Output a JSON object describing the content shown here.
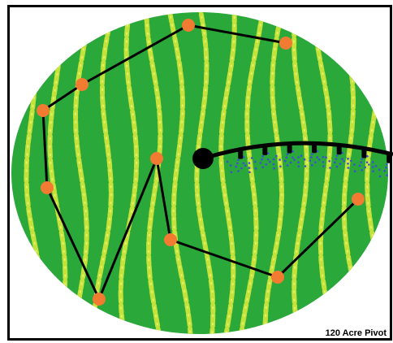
{
  "caption": "120 Acre Pivot",
  "colors": {
    "field": "#2aa83a",
    "stripe": "#c4e23a",
    "stripe_light": "#e4f06a",
    "path": "#000000",
    "point": "#f27b32",
    "pivot": "#000000",
    "spray": "#3d4fd8"
  },
  "route_point_count": 11,
  "sprinkler_drop_count": 7
}
